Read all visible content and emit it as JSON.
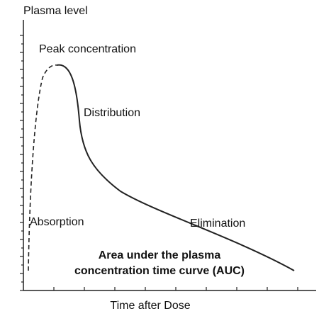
{
  "axes": {
    "y_label": "Plasma level",
    "x_label": "Time after Dose"
  },
  "annotations": {
    "peak": "Peak concentration",
    "distribution": "Distribution",
    "absorption": "Absorption",
    "elimination": "Elimination",
    "auc": [
      "Area under the plasma",
      "concentration time curve (AUC)"
    ]
  }
}
